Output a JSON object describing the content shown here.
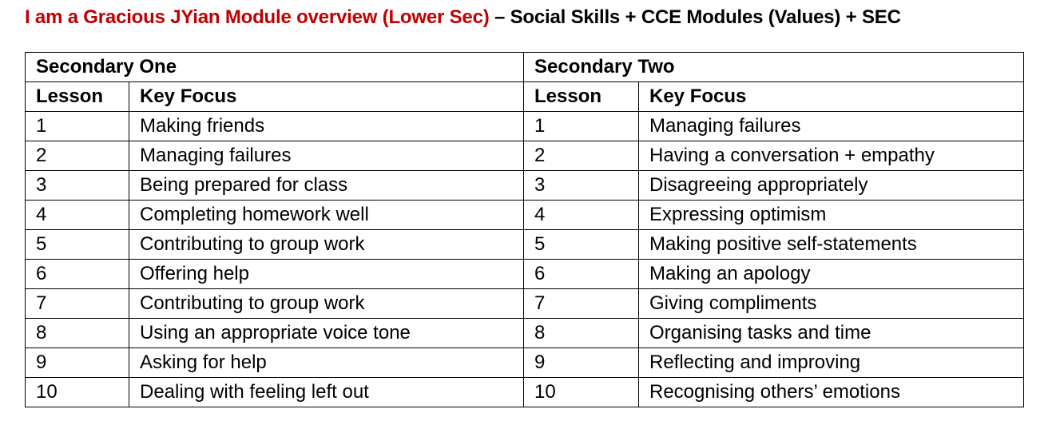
{
  "heading": {
    "red_part": "I am a Gracious JYian Module overview (Lower Sec)",
    "black_part": " – Social Skills + CCE Modules (Values) + SEC"
  },
  "table": {
    "groups": [
      "Secondary One",
      "Secondary Two"
    ],
    "columns": [
      "Lesson",
      "Key Focus",
      "Lesson",
      "Key Focus"
    ],
    "rows": [
      [
        "1",
        "Making friends",
        "1",
        "Managing failures"
      ],
      [
        "2",
        "Managing failures",
        "2",
        "Having a conversation + empathy"
      ],
      [
        "3",
        "Being prepared for class",
        "3",
        "Disagreeing appropriately"
      ],
      [
        "4",
        "Completing homework well",
        "4",
        "Expressing optimism"
      ],
      [
        "5",
        "Contributing to group work",
        "5",
        "Making positive self-statements"
      ],
      [
        "6",
        "Offering help",
        "6",
        "Making an apology"
      ],
      [
        "7",
        "Contributing to group work",
        "7",
        "Giving compliments"
      ],
      [
        "8",
        "Using an appropriate voice tone",
        "8",
        "Organising tasks and time"
      ],
      [
        "9",
        "Asking for help",
        "9",
        "Reflecting and improving"
      ],
      [
        "10",
        "Dealing with feeling left out",
        "10",
        "Recognising others’ emotions"
      ]
    ]
  }
}
